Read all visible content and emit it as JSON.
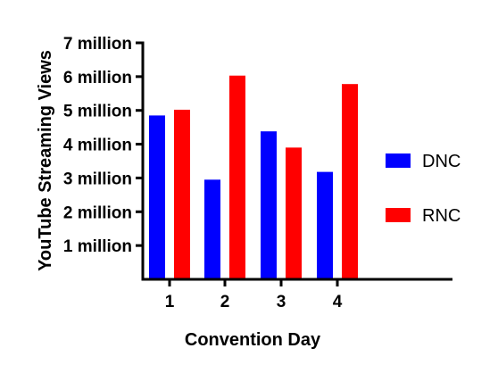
{
  "chart_data": {
    "type": "bar",
    "title": "",
    "xlabel": "Convention Day",
    "ylabel": "YouTube Streaming Views",
    "categories": [
      "1",
      "2",
      "3",
      "4"
    ],
    "series": [
      {
        "name": "DNC",
        "color": "#0000ff",
        "values": [
          4.85,
          2.95,
          4.38,
          3.18
        ]
      },
      {
        "name": "RNC",
        "color": "#ff0000",
        "values": [
          5.02,
          6.03,
          3.9,
          5.78
        ]
      }
    ],
    "ylim": [
      0,
      7
    ],
    "yticks": [
      {
        "value": 1,
        "label": "1 million"
      },
      {
        "value": 2,
        "label": "2 million"
      },
      {
        "value": 3,
        "label": "3 million"
      },
      {
        "value": 4,
        "label": "4 million"
      },
      {
        "value": 5,
        "label": "5 million"
      },
      {
        "value": 6,
        "label": "6 million"
      },
      {
        "value": 7,
        "label": "7 million"
      }
    ],
    "grid": false,
    "legend": "right"
  }
}
